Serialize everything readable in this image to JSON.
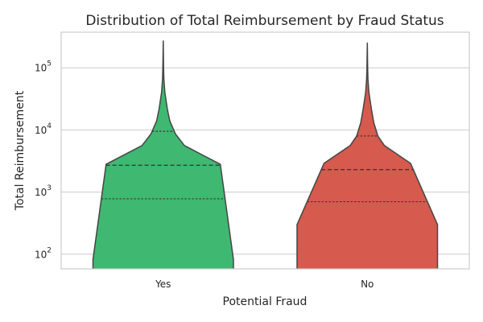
{
  "chart_data": {
    "type": "violin",
    "title": "Distribution of Total Reimbursement by Fraud Status",
    "xlabel": "Potential Fraud",
    "ylabel": "Total Reimbursement",
    "yscale": "log",
    "ylim": [
      55,
      400000
    ],
    "yticks": [
      {
        "value": 100,
        "base": "10",
        "exp": "2"
      },
      {
        "value": 1000,
        "base": "10",
        "exp": "3"
      },
      {
        "value": 10000,
        "base": "10",
        "exp": "4"
      },
      {
        "value": 100000,
        "base": "10",
        "exp": "5"
      }
    ],
    "grid": "horizontal",
    "categories": [
      "Yes",
      "No"
    ],
    "series": [
      {
        "category": "Yes",
        "color": "#3fb871",
        "min": 55,
        "max": 270000,
        "quartiles": [
          780,
          2700,
          9500
        ],
        "profile": [
          [
            55,
            0.86
          ],
          [
            82,
            0.86
          ],
          [
            2800,
            0.7
          ],
          [
            5600,
            0.26
          ],
          [
            8600,
            0.15
          ],
          [
            14000,
            0.08
          ],
          [
            22000,
            0.05
          ],
          [
            40000,
            0.02
          ],
          [
            65000,
            0.008
          ],
          [
            100000,
            0.004
          ],
          [
            270000,
            0.0
          ]
        ]
      },
      {
        "category": "No",
        "color": "#d65a4d",
        "min": 55,
        "max": 250000,
        "quartiles": [
          700,
          2300,
          8000
        ],
        "profile": [
          [
            55,
            0.86
          ],
          [
            300,
            0.86
          ],
          [
            2900,
            0.53
          ],
          [
            5600,
            0.21
          ],
          [
            8000,
            0.13
          ],
          [
            13000,
            0.08
          ],
          [
            22000,
            0.05
          ],
          [
            40000,
            0.02
          ],
          [
            65000,
            0.008
          ],
          [
            100000,
            0.004
          ],
          [
            250000,
            0.0
          ]
        ]
      }
    ]
  }
}
